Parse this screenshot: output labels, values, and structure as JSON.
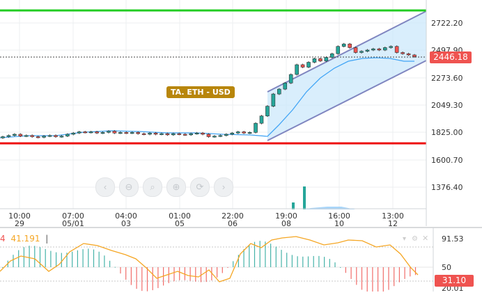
{
  "price_axis": {
    "ticks": [
      "2722.20",
      "2497.90",
      "2273.60",
      "2049.30",
      "1825.00",
      "1600.70",
      "1376.40"
    ],
    "current_price": "2446.18"
  },
  "time_axis": [
    {
      "time": "10:00",
      "date": "29"
    },
    {
      "time": "07:00",
      "date": "05/01"
    },
    {
      "time": "04:00",
      "date": "03"
    },
    {
      "time": "01:00",
      "date": "05"
    },
    {
      "time": "22:00",
      "date": "06"
    },
    {
      "time": "19:00",
      "date": "08"
    },
    {
      "time": "16:00",
      "date": "10"
    },
    {
      "time": "13:00",
      "date": "12"
    }
  ],
  "annotation": {
    "label": "TA.  ETH - USD"
  },
  "indicator": {
    "prefix": "4",
    "value": "41.191",
    "separator": "|",
    "levels": [
      "91.53",
      "50",
      "20.01"
    ],
    "current": "31.10"
  },
  "nav_controls": [
    {
      "name": "scroll-left",
      "icon": "chevron-left-icon",
      "glyph": "‹"
    },
    {
      "name": "zoom-out",
      "icon": "zoom-out-icon",
      "glyph": "⊖"
    },
    {
      "name": "zoom-fit",
      "icon": "zoom-fit-icon",
      "glyph": "⌕"
    },
    {
      "name": "zoom-in",
      "icon": "zoom-in-icon",
      "glyph": "⊕"
    },
    {
      "name": "reset",
      "icon": "reset-icon",
      "glyph": "⟳"
    },
    {
      "name": "scroll-right",
      "icon": "chevron-right-icon",
      "glyph": "›"
    }
  ],
  "colors": {
    "up": "#26a69a",
    "down": "#ef5350",
    "resistance": "#22cc22",
    "support": "#ee1111",
    "channel_fill": "#cce8fb",
    "channel_line": "#8086c0",
    "ma": "#42a5f5",
    "oscillator": "#f5a623"
  },
  "chart_data": {
    "type": "candlestick",
    "symbol": "ETH - USD",
    "y_range": [
      1300,
      2800
    ],
    "horizontal_lines": [
      2770,
      1770
    ],
    "candles": [
      {
        "o": 1780,
        "c": 1790
      },
      {
        "o": 1790,
        "c": 1800
      },
      {
        "o": 1800,
        "c": 1810
      },
      {
        "o": 1810,
        "c": 1795
      },
      {
        "o": 1795,
        "c": 1800
      },
      {
        "o": 1800,
        "c": 1790
      },
      {
        "o": 1790,
        "c": 1785
      },
      {
        "o": 1785,
        "c": 1795
      },
      {
        "o": 1795,
        "c": 1800
      },
      {
        "o": 1800,
        "c": 1790
      },
      {
        "o": 1790,
        "c": 1795
      },
      {
        "o": 1795,
        "c": 1810
      },
      {
        "o": 1810,
        "c": 1820
      },
      {
        "o": 1820,
        "c": 1830
      },
      {
        "o": 1830,
        "c": 1825
      },
      {
        "o": 1825,
        "c": 1830
      },
      {
        "o": 1830,
        "c": 1820
      },
      {
        "o": 1820,
        "c": 1825
      },
      {
        "o": 1825,
        "c": 1835
      },
      {
        "o": 1835,
        "c": 1820
      },
      {
        "o": 1820,
        "c": 1825
      },
      {
        "o": 1825,
        "c": 1820
      },
      {
        "o": 1820,
        "c": 1825
      },
      {
        "o": 1825,
        "c": 1815
      },
      {
        "o": 1815,
        "c": 1810
      },
      {
        "o": 1810,
        "c": 1820
      },
      {
        "o": 1820,
        "c": 1810
      },
      {
        "o": 1810,
        "c": 1815
      },
      {
        "o": 1815,
        "c": 1805
      },
      {
        "o": 1805,
        "c": 1815
      },
      {
        "o": 1815,
        "c": 1810
      },
      {
        "o": 1810,
        "c": 1805
      },
      {
        "o": 1805,
        "c": 1815
      },
      {
        "o": 1815,
        "c": 1820
      },
      {
        "o": 1820,
        "c": 1810
      },
      {
        "o": 1810,
        "c": 1790
      },
      {
        "o": 1790,
        "c": 1795
      },
      {
        "o": 1795,
        "c": 1800
      },
      {
        "o": 1800,
        "c": 1810
      },
      {
        "o": 1810,
        "c": 1820
      },
      {
        "o": 1820,
        "c": 1830
      },
      {
        "o": 1830,
        "c": 1820
      },
      {
        "o": 1820,
        "c": 1825
      },
      {
        "o": 1825,
        "c": 1900
      },
      {
        "o": 1900,
        "c": 1960
      },
      {
        "o": 1960,
        "c": 2040
      },
      {
        "o": 2040,
        "c": 2140
      },
      {
        "o": 2140,
        "c": 2180
      },
      {
        "o": 2180,
        "c": 2230
      },
      {
        "o": 2230,
        "c": 2300
      },
      {
        "o": 2300,
        "c": 2380
      },
      {
        "o": 2380,
        "c": 2360
      },
      {
        "o": 2360,
        "c": 2400
      },
      {
        "o": 2400,
        "c": 2430
      },
      {
        "o": 2430,
        "c": 2410
      },
      {
        "o": 2410,
        "c": 2440
      },
      {
        "o": 2440,
        "c": 2470
      },
      {
        "o": 2470,
        "c": 2530
      },
      {
        "o": 2530,
        "c": 2550
      },
      {
        "o": 2550,
        "c": 2520
      },
      {
        "o": 2520,
        "c": 2480
      },
      {
        "o": 2480,
        "c": 2490
      },
      {
        "o": 2490,
        "c": 2500
      },
      {
        "o": 2500,
        "c": 2510
      },
      {
        "o": 2510,
        "c": 2500
      },
      {
        "o": 2500,
        "c": 2520
      },
      {
        "o": 2520,
        "c": 2530
      },
      {
        "o": 2530,
        "c": 2480
      },
      {
        "o": 2480,
        "c": 2470
      },
      {
        "o": 2470,
        "c": 2460
      },
      {
        "o": 2460,
        "c": 2446
      }
    ]
  }
}
